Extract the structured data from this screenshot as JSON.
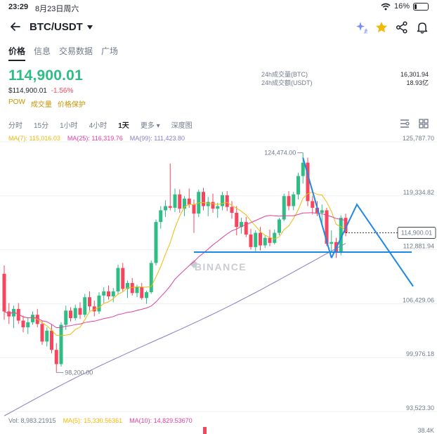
{
  "status_bar": {
    "time": "23:29",
    "date": "8月23日周六",
    "battery": "16%",
    "battery_level": 0.16
  },
  "header": {
    "pair": "BTC/USDT"
  },
  "tabs": [
    {
      "label": "价格",
      "active": true
    },
    {
      "label": "信息",
      "active": false
    },
    {
      "label": "交易数据",
      "active": false
    },
    {
      "label": "广场",
      "active": false
    }
  ],
  "price": {
    "last": "114,900.01",
    "usd": "$114,900.01",
    "change": "-1.56%"
  },
  "tags": [
    "POW",
    "成交量",
    "价格保护"
  ],
  "stats": {
    "vol_btc_label": "24h成交量(BTC)",
    "vol_btc_value": "16,301.94",
    "vol_usdt_label": "24h成交额(USDT)",
    "vol_usdt_value": "18.93亿"
  },
  "intervals": [
    {
      "label": "分时",
      "active": false
    },
    {
      "label": "15分",
      "active": false
    },
    {
      "label": "1小时",
      "active": false
    },
    {
      "label": "4小时",
      "active": false
    },
    {
      "label": "1天",
      "active": true
    },
    {
      "label": "更多",
      "active": false
    },
    {
      "label": "深度图",
      "active": false
    }
  ],
  "ma_legend": [
    {
      "label": "MA(7): 115,016.03",
      "color": "#f0b90b"
    },
    {
      "label": "MA(25): 116,319.76",
      "color": "#e040a0"
    },
    {
      "label": "MA(99): 111,423.80",
      "color": "#8e7cc3"
    }
  ],
  "vol_legend": [
    {
      "label": "Vol: 8,983.21915",
      "color": "#707a8a"
    },
    {
      "label": "MA(5): 15,330.56361",
      "color": "#f0b90b"
    },
    {
      "label": "MA(10): 14,829.53670",
      "color": "#e040a0"
    }
  ],
  "colors": {
    "up": "#2ebd85",
    "down": "#f6465d",
    "trend_lines": "#1e88e5"
  },
  "watermark": "BINANCE",
  "chart_data": {
    "type": "candlestick",
    "y_axis_ticks": [
      "125,787.70",
      "119,334.82",
      "112,881.94",
      "106,429.06",
      "99,976.18",
      "93,523.30"
    ],
    "y_tick_values": [
      125787.7,
      119334.82,
      112881.94,
      106429.06,
      99976.18,
      93523.3
    ],
    "current_price_label": "114,900.01",
    "current_price": 114900.01,
    "annotations": [
      {
        "label": "124,474.00",
        "value": 124474.0
      },
      {
        "label": "98,200.00",
        "value": 98200.0
      }
    ],
    "volume_axis_label": "38.4K",
    "candles": [
      [
        110000,
        111000,
        104500,
        105500
      ],
      [
        105500,
        106500,
        104000,
        104900
      ],
      [
        104900,
        106200,
        103500,
        105800
      ],
      [
        105800,
        106500,
        104000,
        104400
      ],
      [
        104400,
        105000,
        103000,
        103600
      ],
      [
        103600,
        104800,
        102800,
        104200
      ],
      [
        104200,
        105500,
        103900,
        105100
      ],
      [
        105100,
        105800,
        103600,
        104000
      ],
      [
        104000,
        104400,
        101500,
        101900
      ],
      [
        101900,
        103600,
        101300,
        103200
      ],
      [
        103200,
        103900,
        100500,
        100900
      ],
      [
        100900,
        101700,
        98200,
        99200
      ],
      [
        99200,
        104200,
        98900,
        103900
      ],
      [
        103900,
        106200,
        103300,
        105600
      ],
      [
        105600,
        106000,
        104300,
        104700
      ],
      [
        104700,
        106300,
        104400,
        105900
      ],
      [
        105900,
        106600,
        104600,
        105100
      ],
      [
        105100,
        107600,
        104800,
        107200
      ],
      [
        107200,
        107900,
        105600,
        106100
      ],
      [
        106100,
        106800,
        104900,
        105500
      ],
      [
        105500,
        107800,
        105200,
        107400
      ],
      [
        107400,
        108400,
        106500,
        107900
      ],
      [
        107900,
        108600,
        106900,
        107300
      ],
      [
        107300,
        108300,
        106600,
        107900
      ],
      [
        107900,
        111100,
        107600,
        110700
      ],
      [
        110700,
        111300,
        107900,
        108200
      ],
      [
        108200,
        109200,
        107100,
        108900
      ],
      [
        108900,
        109500,
        107400,
        107700
      ],
      [
        107700,
        108700,
        107200,
        108400
      ],
      [
        108400,
        108900,
        106900,
        107100
      ],
      [
        107100,
        108000,
        106400,
        107800
      ],
      [
        107800,
        111600,
        107600,
        111300
      ],
      [
        111300,
        116500,
        111000,
        116200
      ],
      [
        116200,
        118100,
        115400,
        117600
      ],
      [
        117600,
        118800,
        116800,
        118100
      ],
      [
        118100,
        123200,
        117600,
        117900
      ],
      [
        117900,
        120200,
        117400,
        119500
      ],
      [
        119500,
        120100,
        117300,
        117800
      ],
      [
        117800,
        119300,
        116900,
        119000
      ],
      [
        119000,
        120200,
        117900,
        118300
      ],
      [
        118300,
        118900,
        114900,
        117200
      ],
      [
        117200,
        120100,
        116800,
        119800
      ],
      [
        119800,
        120300,
        117600,
        118100
      ],
      [
        118100,
        119200,
        116900,
        118600
      ],
      [
        118600,
        119600,
        117300,
        117800
      ],
      [
        117800,
        118500,
        116700,
        118100
      ],
      [
        118100,
        119800,
        117600,
        119400
      ],
      [
        119400,
        119900,
        117500,
        118000
      ],
      [
        118000,
        118700,
        116600,
        117300
      ],
      [
        117300,
        118100,
        114600,
        115600
      ],
      [
        115600,
        116700,
        114800,
        116200
      ],
      [
        116200,
        116800,
        114400,
        114700
      ],
      [
        114700,
        115400,
        112900,
        113200
      ],
      [
        113200,
        115200,
        112700,
        114900
      ],
      [
        114900,
        115600,
        112800,
        113400
      ],
      [
        113400,
        114600,
        113100,
        114300
      ],
      [
        114300,
        115300,
        113300,
        113700
      ],
      [
        113700,
        115300,
        113500,
        114900
      ],
      [
        114900,
        116700,
        114600,
        116500
      ],
      [
        116500,
        119600,
        116300,
        119300
      ],
      [
        119300,
        119900,
        117600,
        118100
      ],
      [
        118100,
        119800,
        117600,
        119500
      ],
      [
        119500,
        122100,
        118900,
        121700
      ],
      [
        121700,
        124474,
        120800,
        123300
      ],
      [
        123300,
        123900,
        118100,
        118700
      ],
      [
        118700,
        119300,
        117100,
        117900
      ],
      [
        117900,
        118700,
        116900,
        117300
      ],
      [
        117300,
        118300,
        115700,
        117600
      ],
      [
        117600,
        117900,
        113300,
        113600
      ],
      [
        113600,
        115200,
        112600,
        113800
      ],
      [
        113800,
        114300,
        111900,
        112500
      ],
      [
        112500,
        117000,
        112200,
        116700
      ],
      [
        116700,
        117200,
        114500,
        114900
      ]
    ]
  }
}
